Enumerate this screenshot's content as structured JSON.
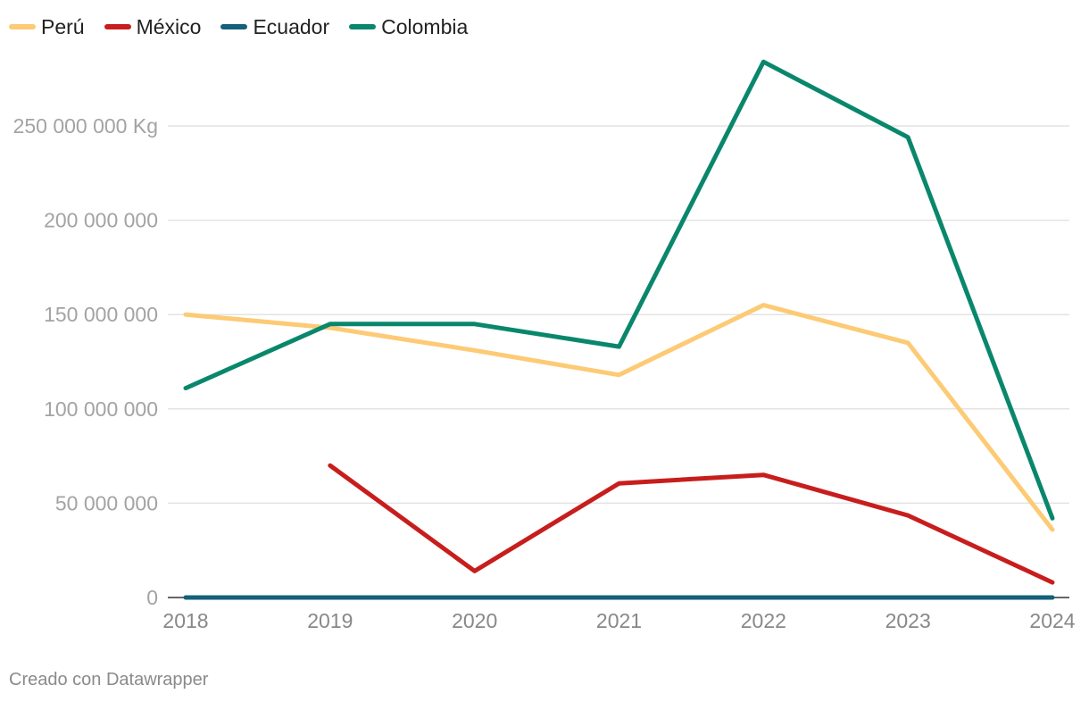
{
  "chart_data": {
    "type": "line",
    "title": "",
    "xlabel": "",
    "ylabel": "",
    "y_unit_label": "250 000 000 Kg",
    "categories": [
      "2018",
      "2019",
      "2020",
      "2021",
      "2022",
      "2023",
      "2024"
    ],
    "ylim": [
      0,
      250000000
    ],
    "y_ticks": [
      {
        "value": 0,
        "label": "0"
      },
      {
        "value": 50000000,
        "label": "50 000 000"
      },
      {
        "value": 100000000,
        "label": "100 000 000"
      },
      {
        "value": 150000000,
        "label": "150 000 000"
      },
      {
        "value": 200000000,
        "label": "200 000 000"
      },
      {
        "value": 250000000,
        "label": "250 000 000 Kg"
      }
    ],
    "grid": true,
    "legend_position": "top-left",
    "series": [
      {
        "name": "Perú",
        "color": "#fdca75",
        "values": [
          150000000,
          143000000,
          131000000,
          118000000,
          155000000,
          135000000,
          36000000
        ]
      },
      {
        "name": "México",
        "color": "#c71e1d",
        "values": [
          null,
          70000000,
          14000000,
          60500000,
          65000000,
          43500000,
          8000000
        ]
      },
      {
        "name": "Ecuador",
        "color": "#15607a",
        "values": [
          0,
          0,
          0,
          0,
          0,
          0,
          0
        ]
      },
      {
        "name": "Colombia",
        "color": "#09876c",
        "values": [
          111000000,
          145000000,
          145000000,
          133000000,
          284000000,
          244000000,
          42000000
        ]
      }
    ]
  },
  "footer": {
    "credit": "Creado con Datawrapper"
  }
}
